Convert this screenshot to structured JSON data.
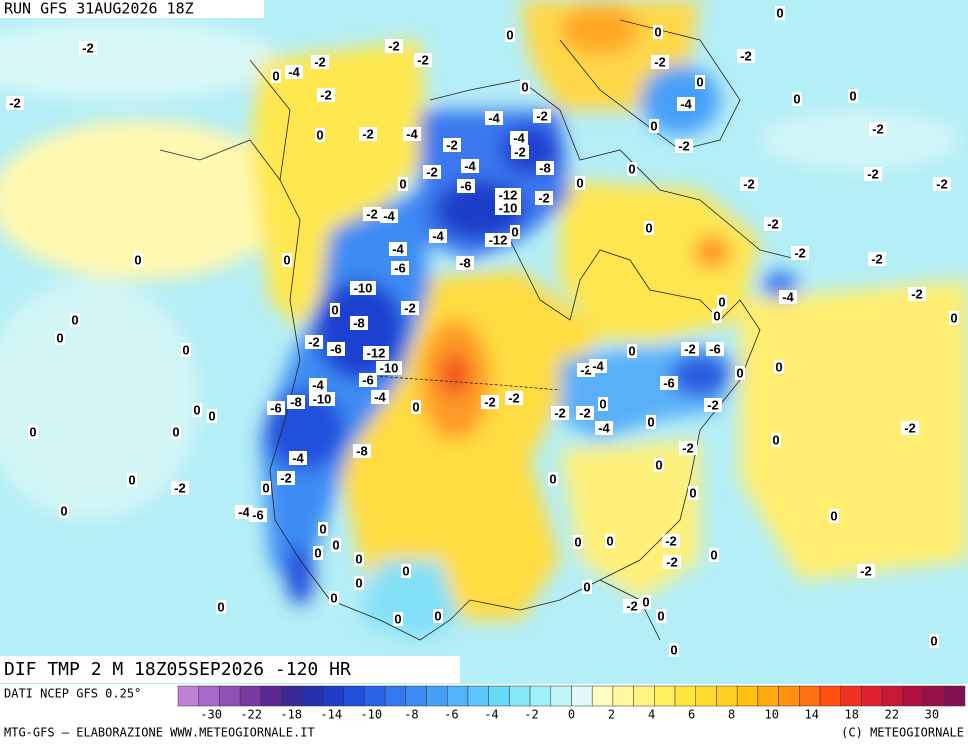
{
  "header": {
    "run": "RUN GFS 31AUG2026 18Z"
  },
  "map": {
    "title": "DIF TMP 2 M 18Z05SEP2026 -120 HR",
    "labels": [
      "-2",
      "0",
      "-4",
      "-2",
      "-2",
      "-2",
      "0",
      "0",
      "0",
      "-2",
      "-2",
      "-2",
      "-2",
      "0",
      "-2",
      "-4",
      "-2",
      "-4",
      "-2",
      "0",
      "-4",
      "-2",
      "-8",
      "-2",
      "-4",
      "-6",
      "0",
      "-12",
      "-10",
      "-2",
      "0",
      "0",
      "-4",
      "0",
      "0",
      "0",
      "-2",
      "0",
      "-2",
      "-2",
      "-2",
      "-2",
      "-2",
      "-4",
      "-4",
      "-12",
      "0",
      "-2",
      "0",
      "-2",
      "-2",
      "-4",
      "-6",
      "-8",
      "0",
      "0",
      "-10",
      "-2",
      "-8",
      "0",
      "-4",
      "0",
      "0",
      "-2",
      "0",
      "0",
      "0",
      "0",
      "-2",
      "-6",
      "-12",
      "-10",
      "-6",
      "-4",
      "0",
      "-4",
      "-8",
      "-10",
      "-6",
      "-2",
      "-4",
      "0",
      "-2",
      "-6",
      "-6",
      "0",
      "0",
      "-2",
      "-2",
      "-2",
      "-2",
      "0",
      "-2",
      "-4",
      "0",
      "-2",
      "0",
      "0",
      "0",
      "0",
      "0",
      "-2",
      "-8",
      "-4",
      "-2",
      "0",
      "0",
      "-2",
      "0",
      "0",
      "0",
      "0",
      "-4",
      "-6",
      "0",
      "0",
      "0",
      "0",
      "0",
      "0",
      "0",
      "-2",
      "0",
      "0",
      "0",
      "-2",
      "-2",
      "0",
      "0",
      "0",
      "-2",
      "0",
      "0",
      "0",
      "0",
      "0",
      "0"
    ]
  },
  "colorbar": {
    "source": "DATI NCEP GFS 0.25°",
    "colors": [
      "#c080d8",
      "#a868c8",
      "#9050b8",
      "#7838a0",
      "#5a2890",
      "#3a2898",
      "#2830b0",
      "#1e3cc8",
      "#1e50dc",
      "#2864e8",
      "#3278f0",
      "#3c8cf4",
      "#46a0f8",
      "#50b4fa",
      "#5ac8fa",
      "#64dcf8",
      "#82e8f8",
      "#a0f0f8",
      "#c0f6f8",
      "#e0fafa",
      "#fffcc0",
      "#fff8a0",
      "#fff480",
      "#ffee60",
      "#ffe640",
      "#ffdc30",
      "#ffd020",
      "#ffc010",
      "#ffaa10",
      "#ff9010",
      "#ff7010",
      "#ff5010",
      "#f03020",
      "#e02030",
      "#c81838",
      "#b01040",
      "#981048",
      "#801050"
    ],
    "ticks": [
      -30,
      -22,
      -18,
      -14,
      -10,
      -8,
      -6,
      -4,
      -2,
      0,
      2,
      4,
      6,
      8,
      10,
      14,
      18,
      22,
      30
    ]
  },
  "footer": {
    "credit": "MTG-GFS — ELABORAZIONE WWW.METEOGIORNALE.IT",
    "copyright": "(C) METEOGIORNALE"
  }
}
